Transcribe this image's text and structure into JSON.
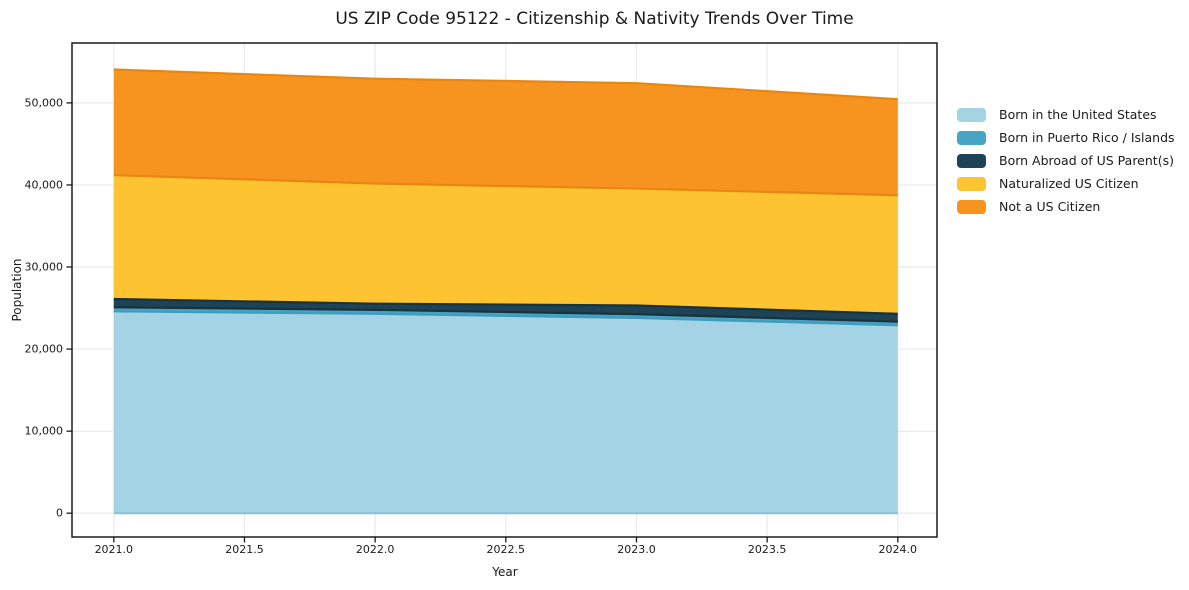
{
  "chart_data": {
    "type": "area",
    "stacked": true,
    "title": "US ZIP Code 95122 - Citizenship & Nativity Trends Over Time",
    "xlabel": "Year",
    "ylabel": "Population",
    "x": [
      2021,
      2022,
      2023,
      2024
    ],
    "series": [
      {
        "name": "Born in the United States",
        "color": "#a5d3e6",
        "edge": "#3f9cbd",
        "values": [
          24600,
          24300,
          23800,
          22900
        ]
      },
      {
        "name": "Born in Puerto Rico / Islands",
        "color": "#46a4c4",
        "edge": "#16333f",
        "values": [
          500,
          480,
          460,
          450
        ]
      },
      {
        "name": "Born Abroad of US Parent(s)",
        "color": "#1e4356",
        "edge": "#16333f",
        "values": [
          1000,
          750,
          1050,
          950
        ]
      },
      {
        "name": "Naturalized US Citizen",
        "color": "#fdc330",
        "edge": "#e8860f",
        "values": [
          15100,
          14650,
          14250,
          14450
        ]
      },
      {
        "name": "Not a US Citizen",
        "color": "#f79420",
        "edge": "#e8860f",
        "values": [
          12870,
          12770,
          12840,
          11700
        ]
      }
    ],
    "totals": [
      54070,
      52950,
      52400,
      50450
    ],
    "xticks": [
      2021.0,
      2021.5,
      2022.0,
      2022.5,
      2023.0,
      2023.5,
      2024.0
    ],
    "yticks": [
      0,
      10000,
      20000,
      30000,
      40000,
      50000
    ],
    "xtick_format": "fixed1",
    "ytick_format": "comma",
    "xlim": [
      2020.84,
      2024.15
    ],
    "ylim": [
      -2900,
      57300
    ],
    "grid": true,
    "grid_color": "#e9e9e9",
    "frame_color": "#1a1a1a",
    "baseline_edge": "#8bbfd8",
    "legend_position": "right-outside"
  }
}
